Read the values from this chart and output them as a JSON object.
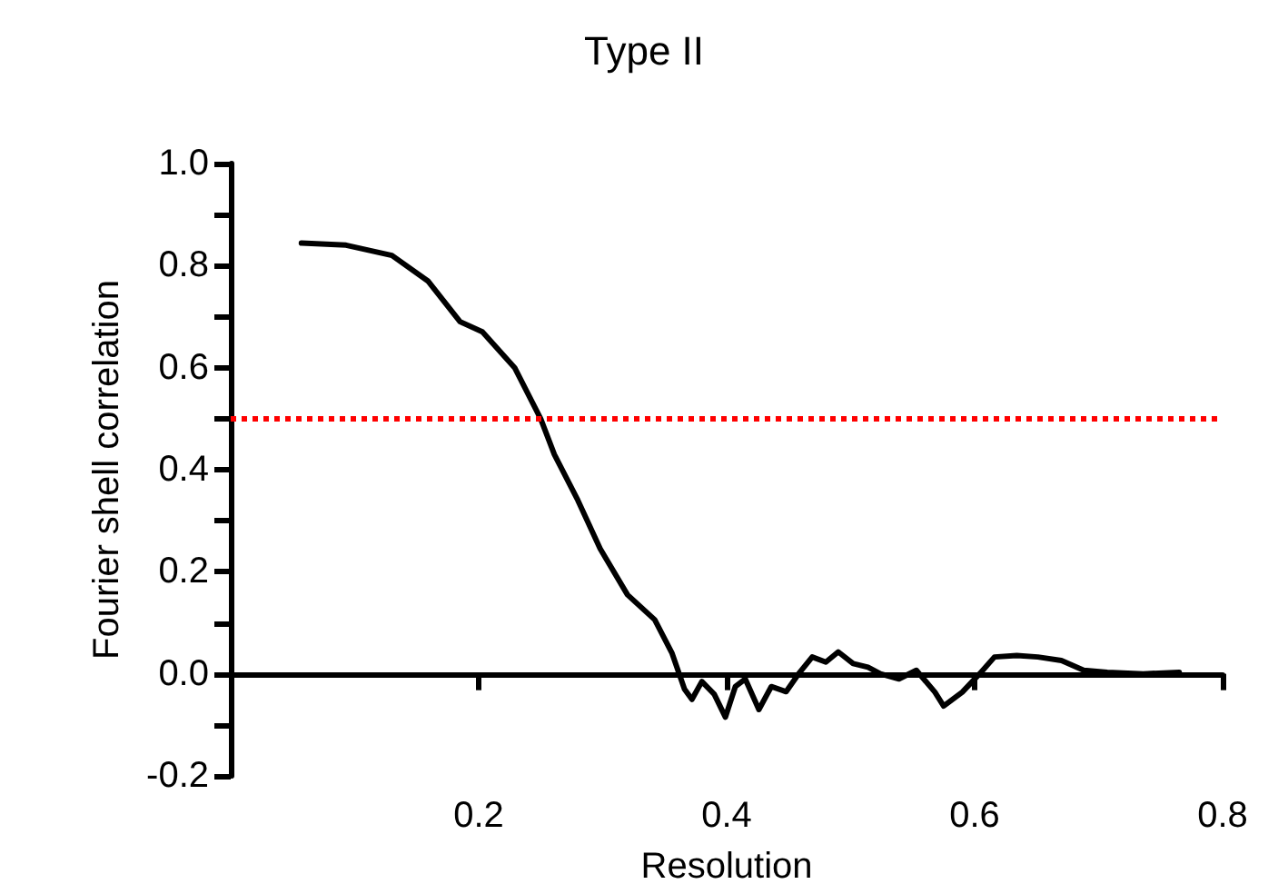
{
  "chart_data": {
    "type": "line",
    "title": "Type II",
    "xlabel": "Resolution",
    "ylabel": "Fourier shell correlation",
    "xlim": [
      0,
      0.8
    ],
    "xticks": [
      0.2,
      0.4,
      0.6,
      0.8
    ],
    "ylim": [
      -0.2,
      1.0
    ],
    "yticks": [
      {
        "value": -0.2,
        "label": "-0.2"
      },
      {
        "value": -0.1,
        "label": null
      },
      {
        "value": 0,
        "label": "0.0"
      },
      {
        "value": 0.1,
        "label": null
      },
      0.2,
      {
        "value": 0.3,
        "label": null
      },
      0.4,
      {
        "value": 0.5,
        "label": null
      },
      0.6,
      {
        "value": 0.7,
        "label": null
      },
      0.8,
      {
        "value": 0.9,
        "label": null
      },
      {
        "value": 1,
        "label": "1.0"
      }
    ],
    "marker": "none",
    "line_style": "solid",
    "series": [
      {
        "color": "#000000",
        "x": [
          0.057,
          0.093,
          0.13,
          0.159,
          0.185,
          0.203,
          0.229,
          0.25,
          0.261,
          0.28,
          0.298,
          0.32,
          0.342,
          0.356,
          0.366,
          0.372,
          0.38,
          0.39,
          0.399,
          0.407,
          0.415,
          0.426,
          0.436,
          0.448,
          0.458,
          0.469,
          0.48,
          0.49,
          0.502,
          0.514,
          0.524,
          0.539,
          0.553,
          0.568,
          0.575,
          0.59,
          0.604,
          0.616,
          0.634,
          0.651,
          0.67,
          0.688,
          0.707,
          0.736,
          0.765
        ],
        "values": [
          0.844,
          0.84,
          0.82,
          0.77,
          0.69,
          0.67,
          0.6,
          0.5,
          0.43,
          0.34,
          0.245,
          0.155,
          0.106,
          0.04,
          -0.03,
          -0.05,
          -0.015,
          -0.04,
          -0.085,
          -0.025,
          -0.01,
          -0.07,
          -0.025,
          -0.035,
          0,
          0.033,
          0.023,
          0.043,
          0.02,
          0.013,
          0,
          -0.01,
          0.007,
          -0.036,
          -0.063,
          -0.036,
          0,
          0.033,
          0.036,
          0.033,
          0.026,
          0.007,
          0.003,
          0,
          0.003
        ]
      }
    ],
    "ref_lines": [
      {
        "axis": "y",
        "value": 0.5,
        "color": "#ff0000",
        "line_style": "dotted"
      }
    ]
  }
}
